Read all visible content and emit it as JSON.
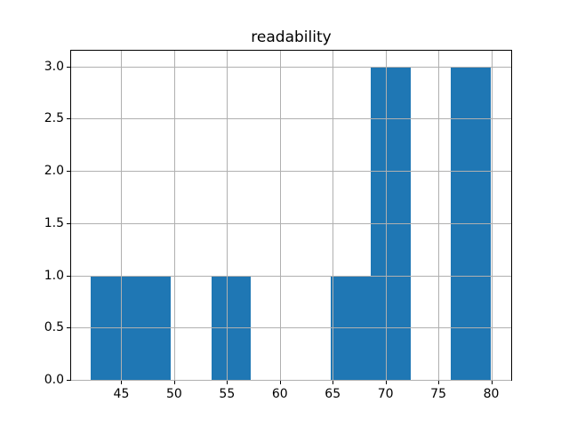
{
  "chart_data": {
    "type": "bar",
    "subtype": "histogram",
    "title": "readability",
    "xlabel": "",
    "ylabel": "",
    "bar_color": "#1f77b4",
    "grid_color": "#b0b0b0",
    "grid": true,
    "grid_above_bars": true,
    "bin_edges": [
      42.14,
      45.93,
      49.71,
      53.5,
      57.28,
      61.07,
      64.85,
      68.64,
      72.42,
      76.21,
      79.99
    ],
    "counts": [
      1,
      1,
      0,
      1,
      0,
      0,
      1,
      3,
      0,
      3
    ],
    "x_ticks": [
      45,
      50,
      55,
      60,
      65,
      70,
      75,
      80
    ],
    "x_tick_labels": [
      "45",
      "50",
      "55",
      "60",
      "65",
      "70",
      "75",
      "80"
    ],
    "y_ticks": [
      0.0,
      0.5,
      1.0,
      1.5,
      2.0,
      2.5,
      3.0
    ],
    "y_tick_labels": [
      "0.0",
      "0.5",
      "1.0",
      "1.5",
      "2.0",
      "2.5",
      "3.0"
    ],
    "xlim": [
      40.25,
      81.89
    ],
    "ylim": [
      0,
      3.15
    ],
    "legend": null
  }
}
